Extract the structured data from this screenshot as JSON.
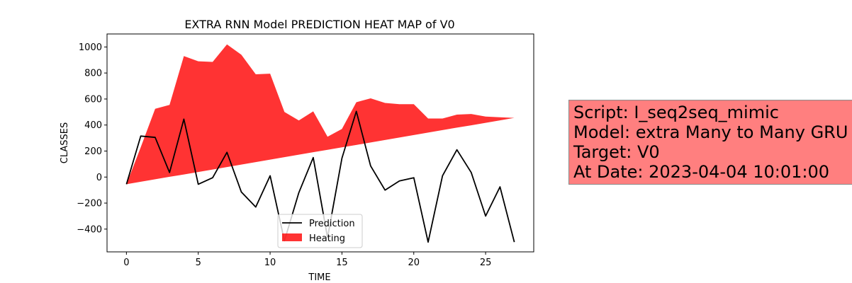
{
  "chart_data": {
    "type": "area",
    "title": "EXTRA RNN Model PREDICTION HEAT MAP of V0",
    "xlabel": "TIME",
    "ylabel": "CLASSES",
    "xlim": [
      -1.35,
      28.35
    ],
    "ylim": [
      -575,
      1100
    ],
    "xticks": [
      0,
      5,
      10,
      15,
      20,
      25
    ],
    "yticks": [
      -400,
      -200,
      0,
      200,
      400,
      600,
      800,
      1000
    ],
    "x": [
      0,
      1,
      2,
      3,
      4,
      5,
      6,
      7,
      8,
      9,
      10,
      11,
      12,
      13,
      14,
      15,
      16,
      17,
      18,
      19,
      20,
      21,
      22,
      23,
      24,
      25,
      26,
      27
    ],
    "grid": false,
    "legend_placement": "lower center",
    "series": [
      {
        "name": "Prediction",
        "type": "line",
        "color": "#000000",
        "values": [
          -55,
          315,
          305,
          35,
          445,
          -55,
          -5,
          190,
          -115,
          -230,
          10,
          -490,
          -120,
          150,
          -465,
          145,
          505,
          85,
          -100,
          -30,
          -5,
          -500,
          10,
          210,
          35,
          -300,
          -75,
          -500
        ]
      },
      {
        "name": "Heating",
        "type": "area",
        "color": "#ff0000",
        "lower": [
          -55,
          -36,
          -17,
          2,
          20,
          39,
          58,
          77,
          96,
          115,
          134,
          153,
          172,
          191,
          209,
          228,
          247,
          266,
          285,
          304,
          323,
          342,
          361,
          380,
          398,
          417,
          436,
          455
        ],
        "upper": [
          -55,
          230,
          525,
          555,
          930,
          890,
          885,
          1020,
          940,
          790,
          795,
          500,
          435,
          505,
          310,
          370,
          575,
          605,
          570,
          560,
          560,
          450,
          450,
          480,
          485,
          465,
          460,
          455
        ]
      }
    ]
  },
  "info_box": {
    "lines": [
      "Script: I_seq2seq_mimic",
      "Model: extra Many to Many GRU",
      "Target: V0",
      "At Date: 2023-04-04 10:01:00"
    ],
    "background": "#ff7f7f"
  }
}
